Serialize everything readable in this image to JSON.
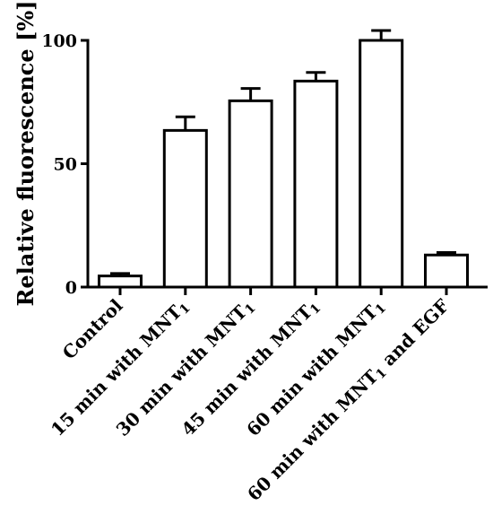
{
  "chart_data": {
    "type": "bar",
    "title": "",
    "xlabel": "",
    "ylabel": "Relative fluorescence [%]",
    "ylim": [
      0,
      100
    ],
    "yticks": [
      0,
      50,
      100
    ],
    "grid": false,
    "legend": "none",
    "categories": [
      {
        "label": "Control",
        "subscript": "",
        "suffix": ""
      },
      {
        "label": "15 min with MNT",
        "subscript": "1",
        "suffix": ""
      },
      {
        "label": "30 min with MNT",
        "subscript": "1",
        "suffix": ""
      },
      {
        "label": "45 min with MNT",
        "subscript": "1",
        "suffix": ""
      },
      {
        "label": "60 min with MNT",
        "subscript": "1",
        "suffix": ""
      },
      {
        "label": "60 min with MNT",
        "subscript": "1",
        "suffix": " and EGF"
      }
    ],
    "values": [
      4.5,
      63.5,
      75.5,
      83.5,
      100,
      13
    ],
    "errors": [
      1,
      5.5,
      5,
      3.5,
      4,
      1
    ],
    "bar_fill": "#ffffff",
    "bar_stroke": "#000000"
  }
}
